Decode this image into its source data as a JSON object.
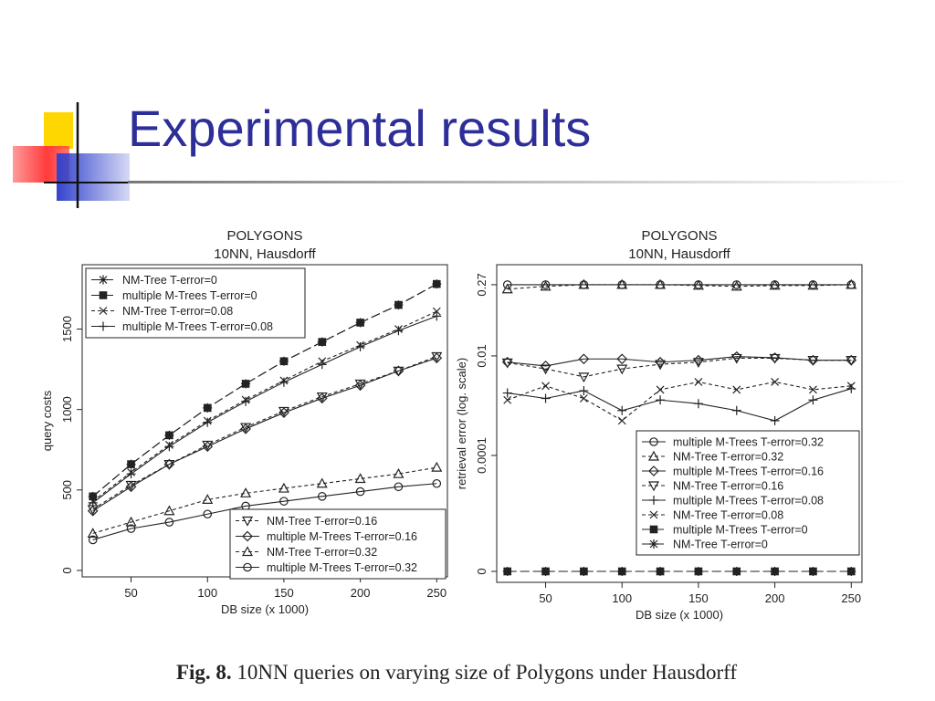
{
  "slide": {
    "title": "Experimental results",
    "caption_label": "Fig. 8.",
    "caption_text": "10NN queries on varying size of Polygons under Hausdorff"
  },
  "colors": {
    "title": "#2e2e99",
    "deco_yellow": "#ffd700",
    "deco_red": "#ff3b3b",
    "deco_blue": "#3344cc",
    "line_color": "#222222"
  },
  "chart_data": [
    {
      "type": "line",
      "title": "POLYGONS",
      "subtitle": "10NN, Hausdorff",
      "xlabel": "DB size (x 1000)",
      "ylabel": "query costs",
      "x": [
        25,
        50,
        75,
        100,
        125,
        150,
        175,
        200,
        225,
        250
      ],
      "xlim": [
        18,
        257
      ],
      "ylim": [
        -40,
        1900
      ],
      "xticks": [
        50,
        100,
        150,
        200,
        250
      ],
      "yticks": [
        0,
        500,
        1000,
        1500
      ],
      "grid": false,
      "series": [
        {
          "name": "NM-Tree T-error=0",
          "marker": "star",
          "dash": "long",
          "values": [
            460,
            660,
            840,
            1010,
            1160,
            1300,
            1420,
            1540,
            1650,
            1780
          ]
        },
        {
          "name": "multiple M-Trees T-error=0",
          "marker": "square",
          "dash": "long",
          "values": [
            460,
            660,
            840,
            1010,
            1160,
            1300,
            1420,
            1540,
            1650,
            1780
          ]
        },
        {
          "name": "NM-Tree T-error=0.08",
          "marker": "x",
          "dash": "short",
          "values": [
            430,
            610,
            780,
            930,
            1060,
            1180,
            1300,
            1400,
            1500,
            1610
          ]
        },
        {
          "name": "multiple M-Trees T-error=0.08",
          "marker": "plus",
          "dash": "solid",
          "values": [
            420,
            600,
            770,
            920,
            1050,
            1170,
            1280,
            1390,
            1490,
            1580
          ]
        },
        {
          "name": "NM-Tree T-error=0.16",
          "marker": "tri-down",
          "dash": "short",
          "values": [
            380,
            530,
            660,
            780,
            890,
            990,
            1080,
            1160,
            1240,
            1330
          ]
        },
        {
          "name": "multiple M-Trees T-error=0.16",
          "marker": "diamond",
          "dash": "solid",
          "values": [
            370,
            520,
            660,
            770,
            880,
            980,
            1070,
            1150,
            1240,
            1320
          ]
        },
        {
          "name": "NM-Tree T-error=0.32",
          "marker": "tri-up",
          "dash": "short",
          "values": [
            230,
            300,
            370,
            440,
            480,
            510,
            540,
            570,
            600,
            640
          ]
        },
        {
          "name": "multiple M-Trees T-error=0.32",
          "marker": "circle",
          "dash": "solid",
          "values": [
            190,
            260,
            300,
            350,
            400,
            430,
            460,
            490,
            520,
            540
          ]
        }
      ],
      "legends": [
        {
          "placement": "top-left",
          "entries": [
            0,
            1,
            2,
            3
          ]
        },
        {
          "placement": "bottom-right",
          "entries": [
            4,
            5,
            6,
            7
          ]
        }
      ]
    },
    {
      "type": "line",
      "title": "POLYGONS",
      "subtitle": "10NN, Hausdorff",
      "xlabel": "DB size (x 1000)",
      "ylabel": "retrieval error (log. scale)",
      "x": [
        25,
        50,
        75,
        100,
        125,
        150,
        175,
        200,
        225,
        250
      ],
      "xlim": [
        18,
        257
      ],
      "yscale": "log",
      "ylim_label_space": [
        -6.0,
        -0.35
      ],
      "zero_row": true,
      "xticks": [
        50,
        100,
        150,
        200,
        250
      ],
      "yticks": [
        {
          "label": "0",
          "value": 0
        },
        {
          "label": "0.0001",
          "value": 0.0001
        },
        {
          "label": "0.01",
          "value": 0.01
        },
        {
          "label": "0.27",
          "value": 0.27
        }
      ],
      "grid": false,
      "series": [
        {
          "name": "multiple M-Trees T-error=0.32",
          "marker": "circle",
          "dash": "solid",
          "values": [
            0.27,
            0.27,
            0.27,
            0.27,
            0.27,
            0.27,
            0.27,
            0.27,
            0.27,
            0.27
          ]
        },
        {
          "name": "NM-Tree T-error=0.32",
          "marker": "tri-up",
          "dash": "short",
          "values": [
            0.22,
            0.25,
            0.27,
            0.27,
            0.27,
            0.26,
            0.25,
            0.26,
            0.26,
            0.27
          ]
        },
        {
          "name": "multiple M-Trees T-error=0.16",
          "marker": "diamond",
          "dash": "solid",
          "values": [
            0.0075,
            0.0063,
            0.0087,
            0.0087,
            0.0075,
            0.0082,
            0.0097,
            0.0092,
            0.0082,
            0.0082
          ]
        },
        {
          "name": "NM-Tree T-error=0.16",
          "marker": "tri-down",
          "dash": "short",
          "values": [
            0.0073,
            0.0055,
            0.0038,
            0.0055,
            0.0068,
            0.0075,
            0.009,
            0.009,
            0.0082,
            0.0082
          ]
        },
        {
          "name": "multiple M-Trees T-error=0.08",
          "marker": "plus",
          "dash": "solid",
          "values": [
            0.0018,
            0.0014,
            0.002,
            0.0008,
            0.0013,
            0.0011,
            0.0008,
            0.0005,
            0.0013,
            0.0022
          ]
        },
        {
          "name": "NM-Tree T-error=0.08",
          "marker": "x",
          "dash": "short",
          "values": [
            0.0013,
            0.0025,
            0.0014,
            0.0005,
            0.0021,
            0.003,
            0.0021,
            0.003,
            0.0021,
            0.0025
          ]
        },
        {
          "name": "multiple M-Trees T-error=0",
          "marker": "square",
          "dash": "long",
          "values": [
            0,
            0,
            0,
            0,
            0,
            0,
            0,
            0,
            0,
            0
          ]
        },
        {
          "name": "NM-Tree T-error=0",
          "marker": "star",
          "dash": "long",
          "values": [
            0,
            0,
            0,
            0,
            0,
            0,
            0,
            0,
            0,
            0
          ]
        }
      ],
      "legends": [
        {
          "placement": "lower-right",
          "entries": [
            0,
            1,
            2,
            3,
            4,
            5,
            6,
            7
          ]
        }
      ]
    }
  ]
}
